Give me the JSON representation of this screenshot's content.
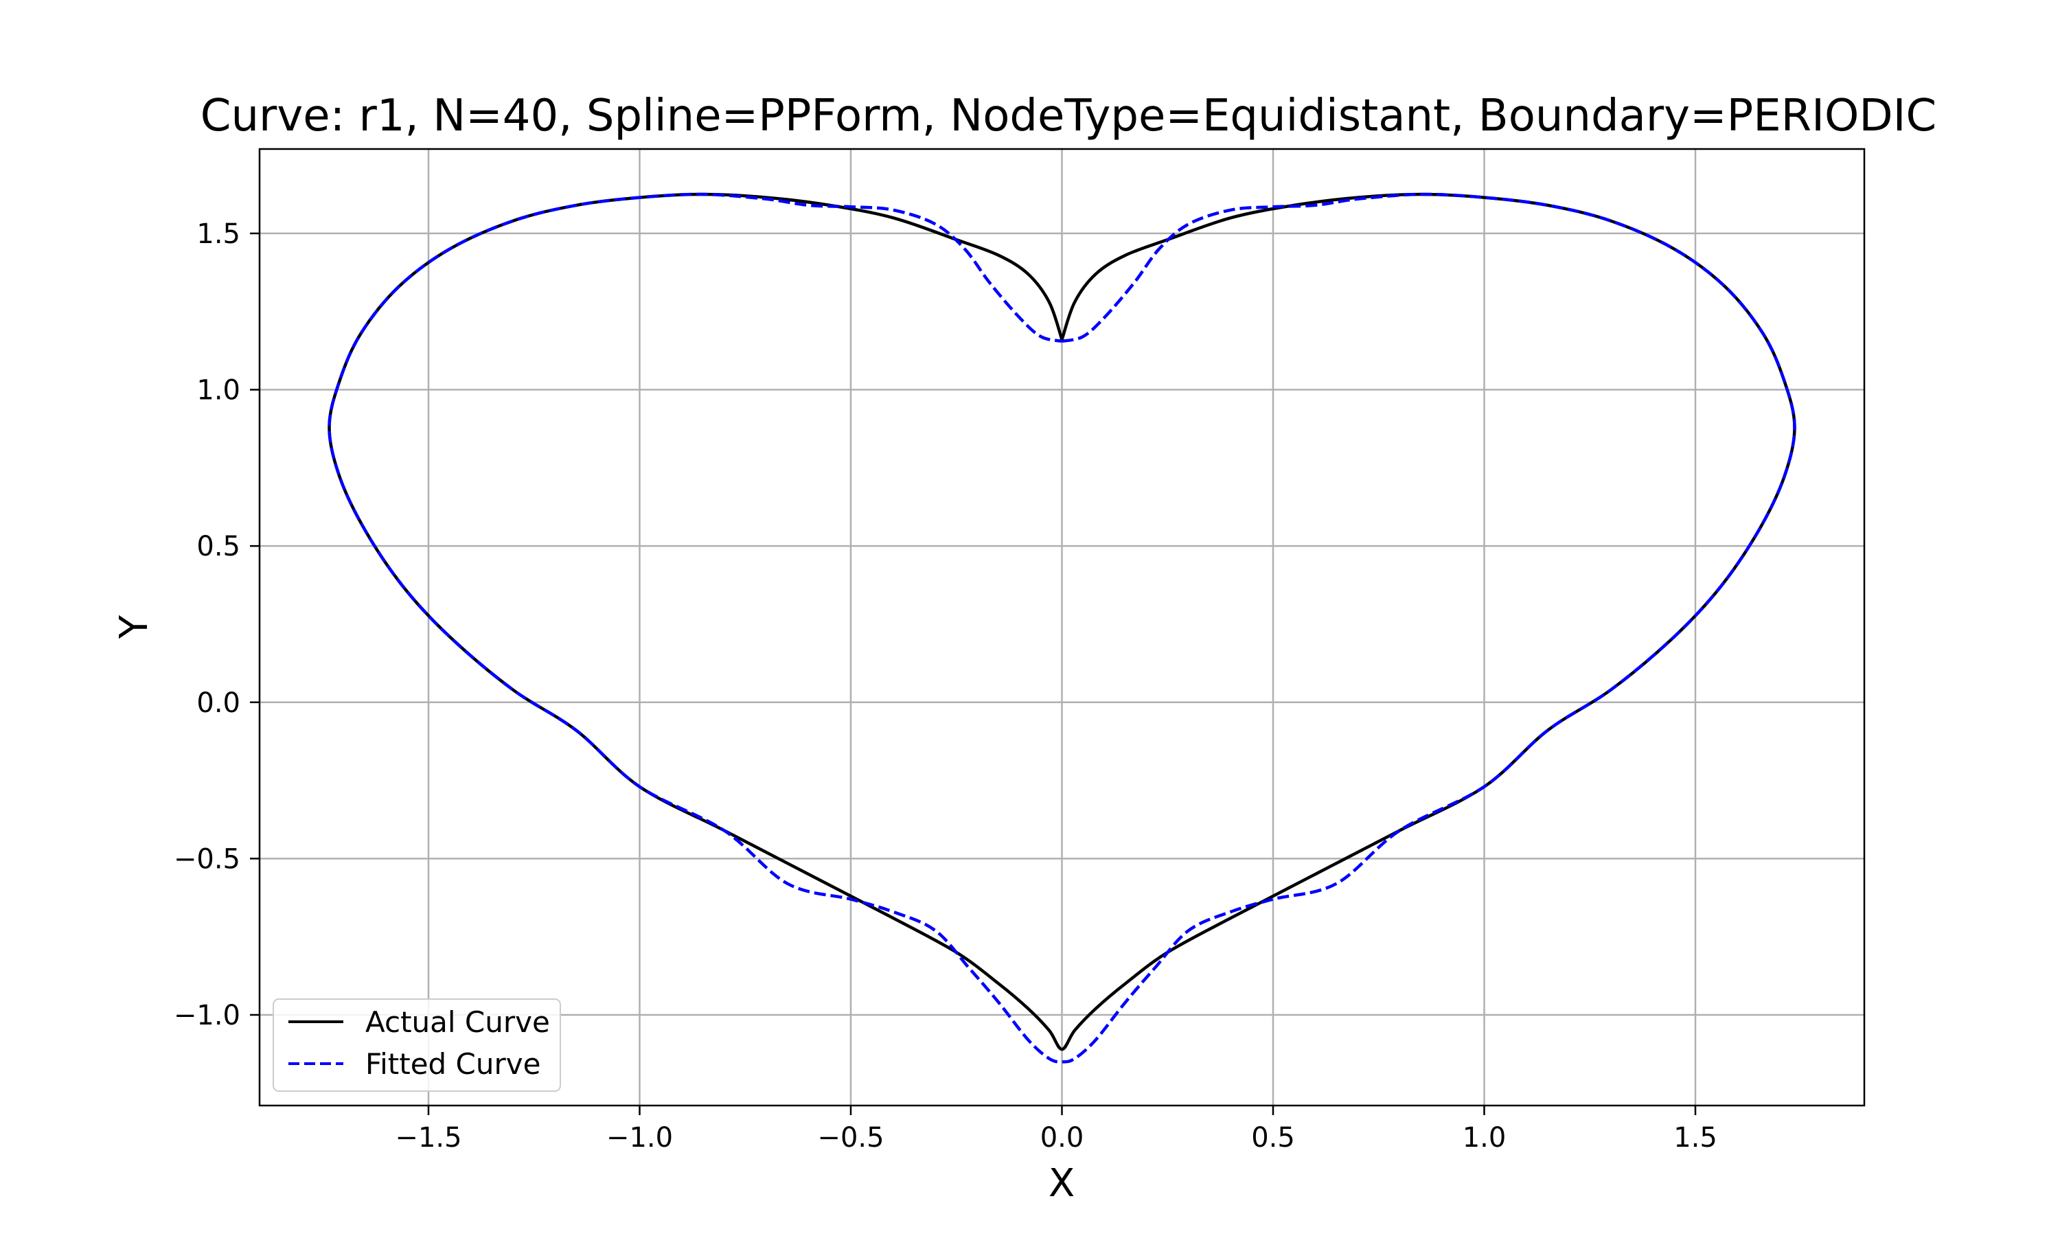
{
  "chart_data": {
    "type": "line",
    "title": "Curve: r1, N=40, Spline=PPForm, NodeType=Equidistant, Boundary=PERIODIC",
    "xlabel": "X",
    "ylabel": "Y",
    "xlim": [
      -1.9,
      1.9
    ],
    "ylim": [
      -1.29,
      1.77
    ],
    "grid": true,
    "legend_position": "lower-left",
    "x_ticks": [
      -1.5,
      -1.0,
      -0.5,
      0.0,
      0.5,
      1.0,
      1.5
    ],
    "x_tick_labels": [
      "−1.5",
      "−1.0",
      "−0.5",
      "0.0",
      "0.5",
      "1.0",
      "1.5"
    ],
    "y_ticks": [
      -1.0,
      -0.5,
      0.0,
      0.5,
      1.0,
      1.5
    ],
    "y_tick_labels": [
      "−1.0",
      "−0.5",
      "0.0",
      "0.5",
      "1.0",
      "1.5"
    ],
    "series": [
      {
        "name": "Actual Curve",
        "color": "#000000",
        "style": "solid",
        "points": [
          [
            0.0,
            1.16
          ],
          [
            0.03,
            1.28
          ],
          [
            0.08,
            1.37
          ],
          [
            0.15,
            1.43
          ],
          [
            0.25,
            1.48
          ],
          [
            0.4,
            1.55
          ],
          [
            0.55,
            1.59
          ],
          [
            0.7,
            1.615
          ],
          [
            0.85,
            1.625
          ],
          [
            1.0,
            1.615
          ],
          [
            1.15,
            1.59
          ],
          [
            1.3,
            1.54
          ],
          [
            1.45,
            1.45
          ],
          [
            1.57,
            1.33
          ],
          [
            1.66,
            1.18
          ],
          [
            1.71,
            1.03
          ],
          [
            1.735,
            0.88
          ],
          [
            1.71,
            0.72
          ],
          [
            1.65,
            0.55
          ],
          [
            1.56,
            0.37
          ],
          [
            1.45,
            0.21
          ],
          [
            1.3,
            0.04
          ],
          [
            1.15,
            -0.09
          ],
          [
            1.0,
            -0.27
          ],
          [
            0.8,
            -0.41
          ],
          [
            0.6,
            -0.55
          ],
          [
            0.4,
            -0.69
          ],
          [
            0.25,
            -0.8
          ],
          [
            0.15,
            -0.9
          ],
          [
            0.08,
            -0.98
          ],
          [
            0.03,
            -1.05
          ],
          [
            0.0,
            -1.11
          ],
          [
            -0.03,
            -1.05
          ],
          [
            -0.08,
            -0.98
          ],
          [
            -0.15,
            -0.9
          ],
          [
            -0.25,
            -0.8
          ],
          [
            -0.4,
            -0.69
          ],
          [
            -0.6,
            -0.55
          ],
          [
            -0.8,
            -0.41
          ],
          [
            -1.0,
            -0.27
          ],
          [
            -1.15,
            -0.09
          ],
          [
            -1.3,
            0.04
          ],
          [
            -1.45,
            0.21
          ],
          [
            -1.56,
            0.37
          ],
          [
            -1.65,
            0.55
          ],
          [
            -1.71,
            0.72
          ],
          [
            -1.735,
            0.88
          ],
          [
            -1.71,
            1.03
          ],
          [
            -1.66,
            1.18
          ],
          [
            -1.57,
            1.33
          ],
          [
            -1.45,
            1.45
          ],
          [
            -1.3,
            1.54
          ],
          [
            -1.15,
            1.59
          ],
          [
            -1.0,
            1.615
          ],
          [
            -0.85,
            1.625
          ],
          [
            -0.7,
            1.615
          ],
          [
            -0.55,
            1.59
          ],
          [
            -0.4,
            1.55
          ],
          [
            -0.25,
            1.48
          ],
          [
            -0.15,
            1.43
          ],
          [
            -0.08,
            1.37
          ],
          [
            -0.03,
            1.28
          ],
          [
            0.0,
            1.16
          ]
        ]
      },
      {
        "name": "Fitted Curve",
        "color": "#0000ff",
        "style": "dashed",
        "points": [
          [
            0.0,
            1.155
          ],
          [
            0.05,
            1.17
          ],
          [
            0.1,
            1.23
          ],
          [
            0.17,
            1.34
          ],
          [
            0.23,
            1.45
          ],
          [
            0.3,
            1.53
          ],
          [
            0.4,
            1.575
          ],
          [
            0.5,
            1.585
          ],
          [
            0.6,
            1.59
          ],
          [
            0.7,
            1.61
          ],
          [
            0.85,
            1.625
          ],
          [
            1.0,
            1.615
          ],
          [
            1.15,
            1.59
          ],
          [
            1.3,
            1.54
          ],
          [
            1.45,
            1.45
          ],
          [
            1.57,
            1.33
          ],
          [
            1.66,
            1.18
          ],
          [
            1.71,
            1.03
          ],
          [
            1.735,
            0.88
          ],
          [
            1.71,
            0.72
          ],
          [
            1.65,
            0.55
          ],
          [
            1.56,
            0.37
          ],
          [
            1.45,
            0.21
          ],
          [
            1.3,
            0.04
          ],
          [
            1.15,
            -0.09
          ],
          [
            1.0,
            -0.27
          ],
          [
            0.8,
            -0.41
          ],
          [
            0.65,
            -0.58
          ],
          [
            0.5,
            -0.63
          ],
          [
            0.4,
            -0.67
          ],
          [
            0.3,
            -0.73
          ],
          [
            0.22,
            -0.85
          ],
          [
            0.15,
            -0.96
          ],
          [
            0.08,
            -1.08
          ],
          [
            0.03,
            -1.14
          ],
          [
            0.0,
            -1.15
          ],
          [
            -0.03,
            -1.14
          ],
          [
            -0.08,
            -1.08
          ],
          [
            -0.15,
            -0.96
          ],
          [
            -0.22,
            -0.85
          ],
          [
            -0.3,
            -0.73
          ],
          [
            -0.4,
            -0.67
          ],
          [
            -0.5,
            -0.63
          ],
          [
            -0.65,
            -0.58
          ],
          [
            -0.8,
            -0.41
          ],
          [
            -1.0,
            -0.27
          ],
          [
            -1.15,
            -0.09
          ],
          [
            -1.3,
            0.04
          ],
          [
            -1.45,
            0.21
          ],
          [
            -1.56,
            0.37
          ],
          [
            -1.65,
            0.55
          ],
          [
            -1.71,
            0.72
          ],
          [
            -1.735,
            0.88
          ],
          [
            -1.71,
            1.03
          ],
          [
            -1.66,
            1.18
          ],
          [
            -1.57,
            1.33
          ],
          [
            -1.45,
            1.45
          ],
          [
            -1.3,
            1.54
          ],
          [
            -1.15,
            1.59
          ],
          [
            -1.0,
            1.615
          ],
          [
            -0.85,
            1.625
          ],
          [
            -0.7,
            1.61
          ],
          [
            -0.6,
            1.59
          ],
          [
            -0.5,
            1.585
          ],
          [
            -0.4,
            1.575
          ],
          [
            -0.3,
            1.53
          ],
          [
            -0.23,
            1.45
          ],
          [
            -0.17,
            1.34
          ],
          [
            -0.1,
            1.23
          ],
          [
            -0.05,
            1.17
          ],
          [
            0.0,
            1.155
          ]
        ]
      }
    ]
  }
}
